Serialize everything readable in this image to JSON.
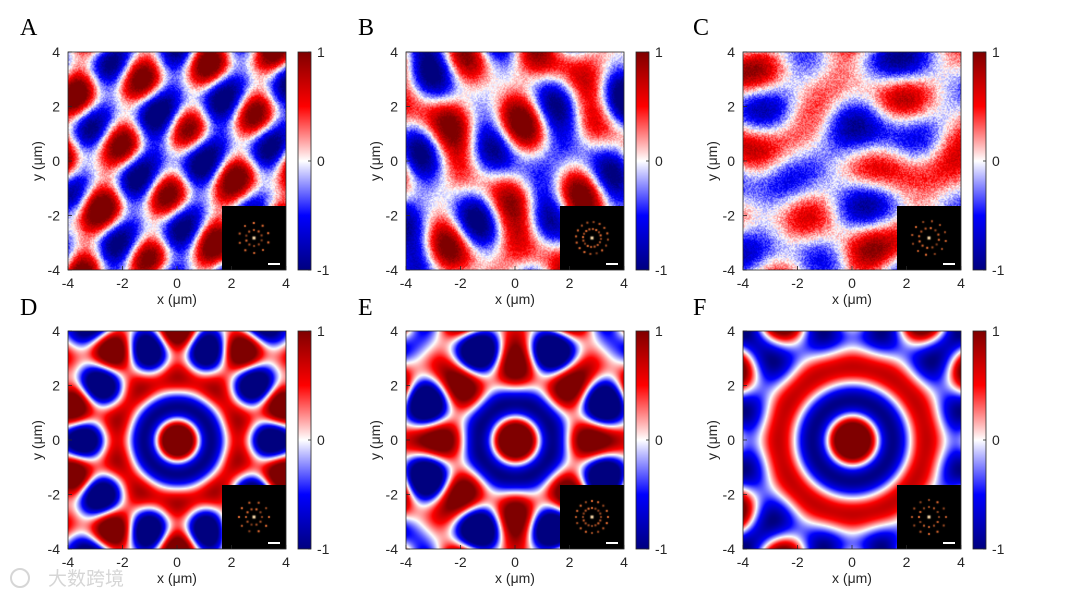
{
  "figure": {
    "watermark": "大数跨境",
    "colorbar": {
      "ticks": [
        "1",
        "0",
        "-1"
      ],
      "colors": [
        "#7f0000",
        "#ff0000",
        "#ffffff",
        "#0000ff",
        "#00007f"
      ]
    },
    "axes": {
      "xlabel": "x (μm)",
      "ylabel": "y (μm)",
      "xticks": [
        "-4",
        "-2",
        "0",
        "2",
        "4"
      ],
      "yticks": [
        "4",
        "2",
        "0",
        "-2",
        "-4"
      ]
    },
    "panels": [
      {
        "id": "panel-a",
        "label": "A",
        "pattern": "experimental-lattice",
        "k": 2.9,
        "rot": 0.3,
        "folds": 6,
        "noise": 0.55
      },
      {
        "id": "panel-b",
        "label": "B",
        "pattern": "experimental-lattice",
        "k": 2.6,
        "rot": 0.1,
        "folds": 8,
        "noise": 0.55
      },
      {
        "id": "panel-c",
        "label": "C",
        "pattern": "experimental-lattice",
        "k": 2.4,
        "rot": 0.7,
        "folds": 12,
        "noise": 0.75
      },
      {
        "id": "panel-d",
        "label": "D",
        "pattern": "quasicrystal",
        "k": 3.1,
        "rot": 0.0,
        "folds": 5,
        "noise": 0.0
      },
      {
        "id": "panel-e",
        "label": "E",
        "pattern": "quasicrystal",
        "k": 2.8,
        "rot": 0.0,
        "folds": 8,
        "noise": 0.0
      },
      {
        "id": "panel-f",
        "label": "F",
        "pattern": "quasicrystal",
        "k": 2.6,
        "rot": 0.0,
        "folds": 12,
        "noise": 0.0
      }
    ]
  }
}
